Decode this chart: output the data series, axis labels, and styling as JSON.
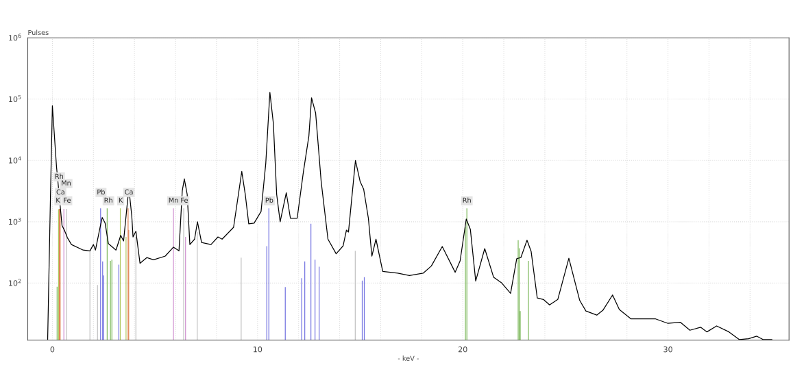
{
  "chart_data": {
    "type": "line",
    "xlabel": "- keV -",
    "ylabel": "Pulses",
    "log": "y",
    "grid": true,
    "marker": "none",
    "line_style": "solid",
    "xlim": [
      -1.2,
      35.9
    ],
    "ylim": [
      11.7,
      1000000
    ],
    "xticks": [
      0,
      {
        "value": 2,
        "label": null
      },
      {
        "value": 4,
        "label": null
      },
      {
        "value": 6,
        "label": null
      },
      {
        "value": 8,
        "label": null
      },
      10,
      {
        "value": 12,
        "label": null
      },
      {
        "value": 14,
        "label": null
      },
      {
        "value": 16,
        "label": null
      },
      {
        "value": 18,
        "label": null
      },
      20,
      {
        "value": 22,
        "label": null
      },
      {
        "value": 24,
        "label": null
      },
      {
        "value": 26,
        "label": null
      },
      {
        "value": 28,
        "label": null
      },
      30,
      {
        "value": 32,
        "label": null
      },
      {
        "value": 34,
        "label": null
      }
    ],
    "yticks": [
      {
        "value": 100,
        "label": "10$^{2}$"
      },
      {
        "value": 1000,
        "label": "10$^{3}$"
      },
      {
        "value": 10000,
        "label": "10$^{4}$"
      },
      {
        "value": 100000,
        "label": "10$^{5}$"
      },
      {
        "value": 1000000,
        "label": "10$^{6}$"
      }
    ],
    "series": [
      {
        "type": "bar",
        "color": "#7cb85a",
        "x": [
          0.23,
          2.67,
          2.83,
          2.9,
          20.13,
          20.2,
          22.7,
          22.75,
          22.8,
          23.2
        ],
        "values": [
          87,
          1650,
          230,
          240,
          830,
          1650,
          500,
          370,
          35,
          230
        ]
      },
      {
        "type": "bar",
        "color": "#7070e0",
        "x": [
          2.35,
          2.45,
          2.5,
          3.24,
          10.45,
          10.55,
          11.35,
          12.15,
          12.3,
          12.6,
          12.8,
          13.0,
          15.1,
          15.2
        ],
        "values": [
          1650,
          225,
          133,
          200,
          400,
          1650,
          86,
          120,
          225,
          925,
          240,
          185,
          110,
          125
        ]
      },
      {
        "type": "bar",
        "color": "#e08050",
        "x": [
          0.34,
          0.38,
          3.69,
          3.72
        ],
        "values": [
          1620,
          1620,
          1650,
          735
        ]
      },
      {
        "type": "bar",
        "color": "#b0c860",
        "x": [
          0.3,
          3.31,
          3.59
        ],
        "values": [
          1600,
          1650,
          565
        ]
      },
      {
        "type": "bar",
        "color": "#d090d0",
        "x": [
          0.56,
          5.9,
          6.49
        ],
        "values": [
          1620,
          1650,
          565
        ]
      },
      {
        "type": "bar",
        "color": "#c0c0c0",
        "x": [
          0.7,
          1.83,
          2.2,
          4.07,
          6.4,
          7.06,
          9.2,
          14.76
        ],
        "values": [
          1620,
          330,
          93,
          565,
          1650,
          680,
          260,
          335
        ]
      },
      {
        "color": "#000000",
        "x": [
          -0.23,
          -0.1,
          0,
          0.2,
          0.47,
          0.6,
          0.73,
          0.93,
          1.5,
          1.83,
          2.0,
          2.1,
          2.33,
          2.43,
          2.57,
          2.73,
          3.1,
          3.33,
          3.47,
          3.67,
          3.73,
          3.87,
          3.93,
          4.07,
          4.27,
          4.6,
          4.93,
          5.5,
          5.9,
          6.17,
          6.33,
          6.43,
          6.57,
          6.7,
          6.93,
          7.07,
          7.27,
          7.73,
          8.07,
          8.27,
          8.83,
          9.23,
          9.4,
          9.57,
          9.83,
          10.17,
          10.4,
          10.6,
          10.77,
          10.93,
          11.1,
          11.4,
          11.6,
          11.93,
          12.23,
          12.5,
          12.63,
          12.83,
          13.1,
          13.43,
          13.83,
          14.17,
          14.33,
          14.43,
          14.77,
          15.0,
          15.17,
          15.4,
          15.57,
          15.77,
          16.1,
          16.83,
          17.4,
          18.07,
          18.47,
          19.0,
          19.63,
          19.87,
          20.17,
          20.37,
          20.63,
          21.07,
          21.5,
          21.9,
          22.33,
          22.63,
          22.83,
          23.13,
          23.33,
          23.63,
          23.93,
          24.23,
          24.63,
          25.17,
          25.7,
          26.0,
          26.53,
          26.83,
          27.3,
          27.63,
          28.2,
          29.4,
          30.0,
          30.6,
          31.07,
          31.6,
          31.9,
          32.37,
          32.97,
          33.47,
          33.93,
          34.33,
          34.63,
          35.07
        ],
        "values": [
          12,
          2000,
          78000,
          8000,
          870,
          710,
          550,
          425,
          345,
          335,
          425,
          345,
          830,
          1170,
          950,
          440,
          345,
          600,
          485,
          2300,
          3460,
          1230,
          565,
          700,
          210,
          260,
          240,
          275,
          385,
          335,
          3200,
          5000,
          2800,
          425,
          520,
          1000,
          460,
          425,
          565,
          520,
          810,
          6600,
          2800,
          925,
          950,
          1470,
          9000,
          129000,
          40000,
          2800,
          1000,
          2970,
          1140,
          1140,
          6400,
          25000,
          105000,
          59000,
          4500,
          520,
          300,
          405,
          730,
          680,
          10000,
          4500,
          3400,
          1140,
          275,
          520,
          155,
          145,
          133,
          145,
          190,
          395,
          150,
          230,
          1110,
          750,
          108,
          365,
          125,
          100,
          68,
          250,
          260,
          500,
          330,
          57,
          54,
          44,
          54,
          254,
          52,
          35,
          30,
          36,
          64,
          37,
          26,
          26,
          22,
          23,
          17,
          19,
          16,
          20,
          16,
          12,
          12.4,
          13.6,
          12,
          12
        ]
      }
    ],
    "annotations": [
      {
        "text": "Rh",
        "x": 0.33,
        "y": 5400
      },
      {
        "text": "Mn",
        "x": 0.67,
        "y": 4200
      },
      {
        "text": "Ca",
        "x": 0.4,
        "y": 3000
      },
      {
        "text": "K",
        "x": 0.27,
        "y": 2200
      },
      {
        "text": "Fe",
        "x": 0.72,
        "y": 2200
      },
      {
        "text": "Pb",
        "x": 2.37,
        "y": 3000
      },
      {
        "text": "Rh",
        "x": 2.73,
        "y": 2200
      },
      {
        "text": "K",
        "x": 3.33,
        "y": 2200
      },
      {
        "text": "Ca",
        "x": 3.73,
        "y": 3000
      },
      {
        "text": "Mn",
        "x": 5.9,
        "y": 2200
      },
      {
        "text": "Fe",
        "x": 6.43,
        "y": 2200
      },
      {
        "text": "Pb",
        "x": 10.57,
        "y": 2200
      },
      {
        "text": "Rh",
        "x": 20.2,
        "y": 2200
      }
    ]
  }
}
